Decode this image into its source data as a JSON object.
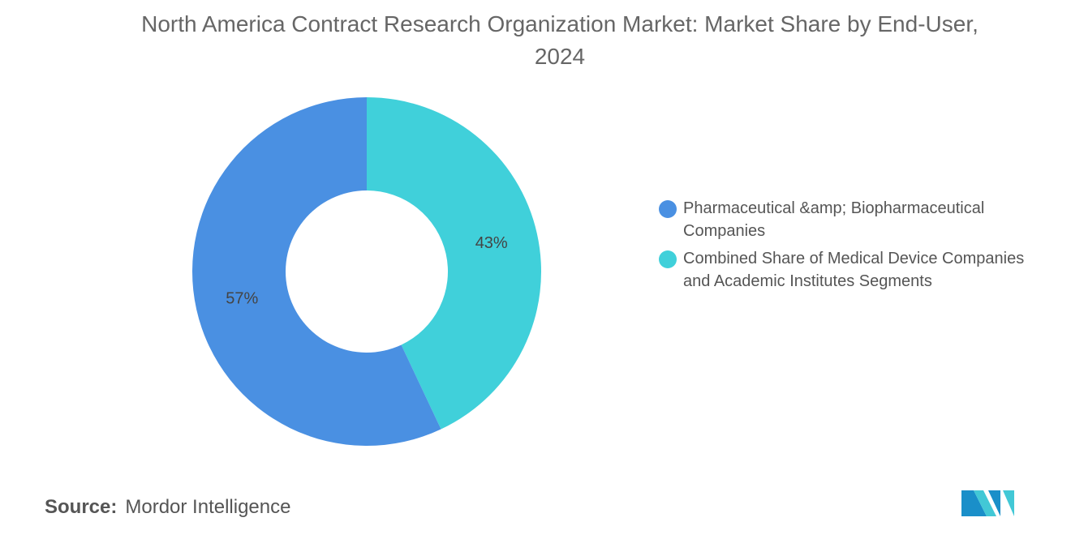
{
  "chart_data": {
    "type": "donut",
    "title": "North America Contract Research Organization Market: Market Share by End-User, 2024",
    "categories": [
      "Pharmaceutical &amp; Biopharmaceutical Companies",
      "Combined Share of Medical Device Companies and Academic Institutes Segments"
    ],
    "values": [
      57,
      43
    ],
    "value_labels": [
      "57%",
      "43%"
    ],
    "colors": [
      "#4a90e2",
      "#40d0da"
    ],
    "source_label": "Source:",
    "source": "Mordor Intelligence"
  }
}
